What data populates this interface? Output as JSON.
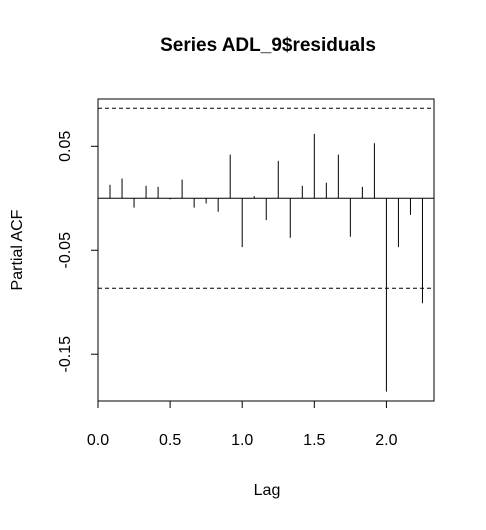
{
  "chart_data": {
    "type": "bar",
    "title": "Series  ADL_9$residuals",
    "xlabel": "Lag",
    "ylabel": "Partial ACF",
    "xlim": [
      0,
      2.33
    ],
    "ylim": [
      -0.195,
      0.0955
    ],
    "x_ticks": [
      {
        "value": 0.0,
        "label": "0.0"
      },
      {
        "value": 0.5,
        "label": "0.5"
      },
      {
        "value": 1.0,
        "label": "1.0"
      },
      {
        "value": 1.5,
        "label": "1.5"
      },
      {
        "value": 2.0,
        "label": "2.0"
      }
    ],
    "y_ticks": [
      {
        "value": 0.05,
        "label": "0.05"
      },
      {
        "value": -0.05,
        "label": "-0.05"
      },
      {
        "value": -0.15,
        "label": "-0.15"
      }
    ],
    "confidence_bounds": [
      0.0866,
      -0.0866
    ],
    "series": [
      {
        "x": [
          0.0833,
          0.1667,
          0.25,
          0.3333,
          0.4167,
          0.5,
          0.5833,
          0.6667,
          0.75,
          0.8333,
          0.9167,
          1.0,
          1.0833,
          1.1667,
          1.25,
          1.3333,
          1.4167,
          1.5,
          1.5833,
          1.6667,
          1.75,
          1.8333,
          1.9167,
          2.0,
          2.0833,
          2.1667,
          2.25
        ],
        "values": [
          0.013,
          0.019,
          -0.009,
          0.012,
          0.011,
          -0.001,
          0.018,
          -0.009,
          -0.005,
          -0.013,
          0.042,
          -0.047,
          0.002,
          -0.021,
          0.036,
          -0.038,
          0.012,
          0.062,
          0.015,
          0.042,
          -0.037,
          0.011,
          0.053,
          -0.186,
          -0.047,
          -0.016,
          -0.101
        ]
      }
    ]
  }
}
